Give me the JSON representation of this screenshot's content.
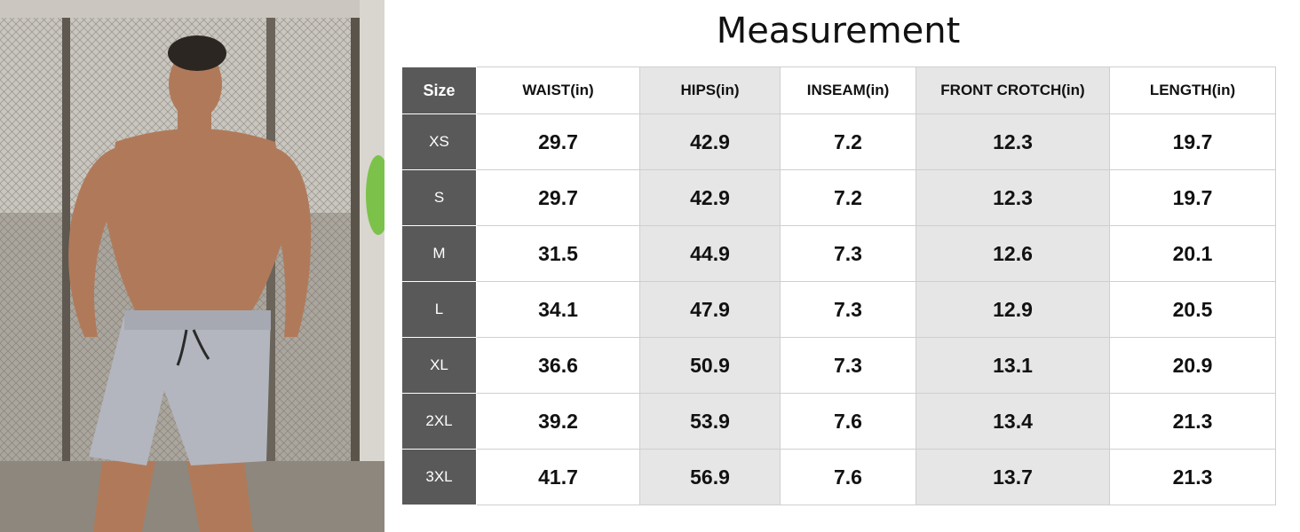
{
  "title": "Measurement",
  "table": {
    "headers": [
      "Size",
      "WAIST(in)",
      "HIPS(in)",
      "INSEAM(in)",
      "FRONT CROTCH(in)",
      "LENGTH(in)"
    ],
    "rows": [
      [
        "XS",
        "29.7",
        "42.9",
        "7.2",
        "12.3",
        "19.7"
      ],
      [
        "S",
        "29.7",
        "42.9",
        "7.2",
        "12.3",
        "19.7"
      ],
      [
        "M",
        "31.5",
        "44.9",
        "7.3",
        "12.6",
        "20.1"
      ],
      [
        "L",
        "34.1",
        "47.9",
        "7.3",
        "12.9",
        "20.5"
      ],
      [
        "XL",
        "36.6",
        "50.9",
        "7.3",
        "13.1",
        "20.9"
      ],
      [
        "2XL",
        "39.2",
        "53.9",
        "7.6",
        "13.4",
        "21.3"
      ],
      [
        "3XL",
        "41.7",
        "56.9",
        "7.6",
        "13.7",
        "21.3"
      ]
    ]
  },
  "colors": {
    "size_column_bg": "#595959",
    "shaded_column_bg": "#e6e6e6",
    "shorts": "#b3b6be"
  }
}
